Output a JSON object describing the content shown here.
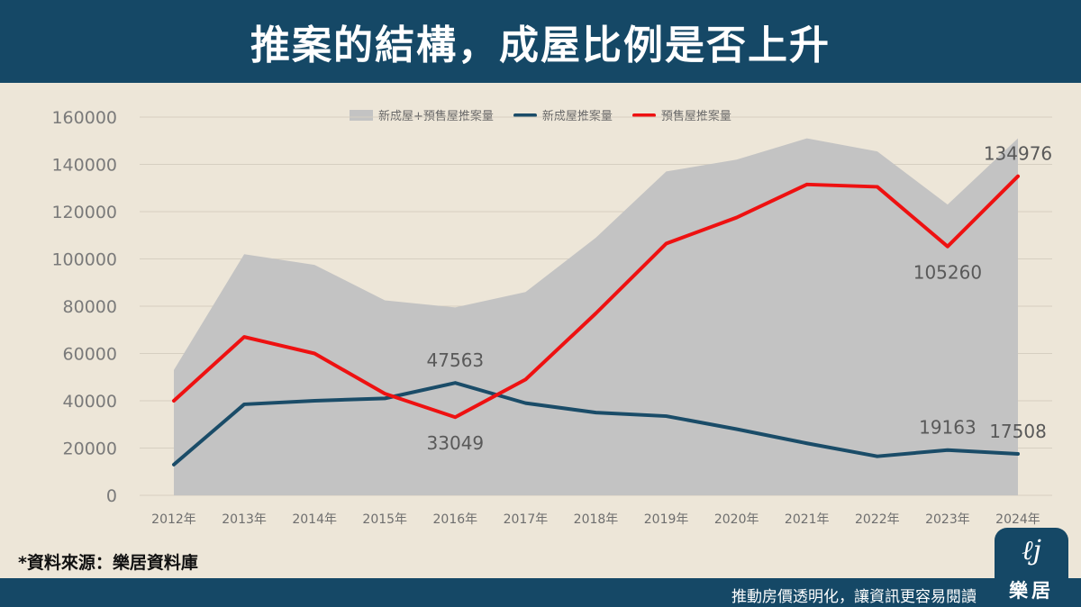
{
  "header": {
    "title": "推案的結構，成屋比例是否上升"
  },
  "legend": {
    "total": "新成屋+預售屋推案量",
    "new_house": "新成屋推案量",
    "presale": "預售屋推案量"
  },
  "source": "*資料來源：樂居資料庫",
  "footer": {
    "slogan": "推動房價透明化，讓資訊更容易閱讀"
  },
  "logo": {
    "name": "樂居"
  },
  "colors": {
    "header": "#154866",
    "total": "#c3c3c3",
    "new_house": "#1a4c68",
    "presale": "#ee1111",
    "background": "#ede6d8"
  },
  "chart_data": {
    "type": "area+line",
    "categories": [
      "2012年",
      "2013年",
      "2014年",
      "2015年",
      "2016年",
      "2017年",
      "2018年",
      "2019年",
      "2020年",
      "2021年",
      "2022年",
      "2023年",
      "2024年"
    ],
    "series": [
      {
        "name": "新成屋+預售屋推案量",
        "type": "area",
        "values": [
          53000,
          102000,
          97500,
          82500,
          79500,
          86000,
          109000,
          137000,
          142000,
          151000,
          145500,
          123000,
          151000
        ]
      },
      {
        "name": "新成屋推案量",
        "type": "line",
        "values": [
          13000,
          38500,
          40000,
          41000,
          47563,
          39000,
          35000,
          33500,
          28000,
          22000,
          16500,
          19163,
          17508
        ]
      },
      {
        "name": "預售屋推案量",
        "type": "line",
        "values": [
          40000,
          67000,
          60000,
          43000,
          33049,
          49000,
          77000,
          106500,
          117500,
          131500,
          130500,
          105260,
          134976
        ]
      }
    ],
    "data_labels": [
      {
        "series": "新成屋推案量",
        "category": "2016年",
        "text": "47563",
        "pos": "above"
      },
      {
        "series": "預售屋推案量",
        "category": "2016年",
        "text": "33049",
        "pos": "below"
      },
      {
        "series": "新成屋推案量",
        "category": "2023年",
        "text": "19163",
        "pos": "above"
      },
      {
        "series": "新成屋推案量",
        "category": "2024年",
        "text": "17508",
        "pos": "above"
      },
      {
        "series": "預售屋推案量",
        "category": "2023年",
        "text": "105260",
        "pos": "below"
      },
      {
        "series": "預售屋推案量",
        "category": "2024年",
        "text": "134976",
        "pos": "above"
      }
    ],
    "yticks": [
      0,
      20000,
      40000,
      60000,
      80000,
      100000,
      120000,
      140000,
      160000
    ],
    "ylim": [
      0,
      160000
    ],
    "grid": true,
    "legend_position": "top"
  }
}
